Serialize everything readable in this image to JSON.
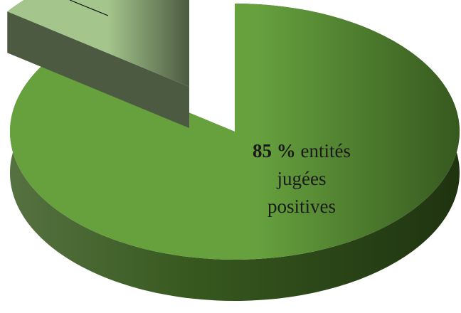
{
  "chart_data": {
    "type": "pie",
    "style": "3d-exploded",
    "slices": [
      {
        "id": "positive",
        "percent": 85,
        "value_label": "85 %",
        "label_lines": [
          "entités",
          "jugées",
          "positives"
        ],
        "colors": {
          "top": "#66a13e",
          "side": "#37591f"
        }
      },
      {
        "id": "other",
        "percent": 15,
        "colors": {
          "top": "#a4c68c",
          "side": "#4c5a41"
        }
      }
    ],
    "leader_line": true
  }
}
